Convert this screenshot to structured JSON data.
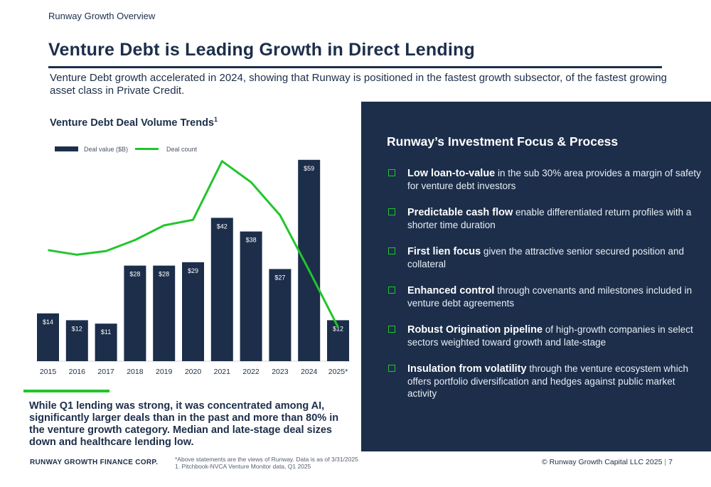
{
  "header": {
    "eyebrow": "Runway Growth Overview",
    "title": "Venture Debt is Leading Growth in Direct Lending",
    "subtitle": "Venture Debt growth accelerated in 2024, showing that Runway is positioned in the fastest growth subsector, of the fastest growing asset class in Private Credit."
  },
  "chart": {
    "title": "Venture Debt Deal Volume Trends",
    "title_sup": "1"
  },
  "chart_data": {
    "type": "bar",
    "categories": [
      "2015",
      "2016",
      "2017",
      "2018",
      "2019",
      "2020",
      "2021",
      "2022",
      "2023",
      "2024",
      "2025*"
    ],
    "series": [
      {
        "name": "Deal value ($B)",
        "type": "bar",
        "values": [
          14,
          12,
          11,
          28,
          28,
          29,
          42,
          38,
          27,
          59,
          12
        ],
        "labels": [
          "$14",
          "$12",
          "$11",
          "$28",
          "$28",
          "$29",
          "$42",
          "$38",
          "$27",
          "$59",
          "$12"
        ]
      },
      {
        "name": "Deal count",
        "type": "line",
        "values": [
          0.4,
          0.375,
          0.395,
          0.455,
          0.535,
          0.565,
          0.885,
          0.77,
          0.59,
          0.29,
          -0.02
        ]
      }
    ],
    "legend_position": "top-left",
    "colors": {
      "bar": "#1c2e4a",
      "line": "#22c52c",
      "bar_label": "#ffffff"
    }
  },
  "callout": "While Q1 lending was strong, it was concentrated among AI, significantly larger deals than in the past and more than 80% in the venture growth category. Median and late-stage deal sizes down and healthcare lending low.",
  "panel": {
    "title": "Runway’s Investment Focus & Process",
    "items": [
      {
        "lead": "Low loan-to-value",
        "rest": " in the sub 30% area provides a margin of safety for venture debt investors"
      },
      {
        "lead": "Predictable cash flow",
        "rest": " enable differentiated return profiles with a shorter time duration"
      },
      {
        "lead": "First lien focus",
        "rest": " given the attractive senior secured position and collateral"
      },
      {
        "lead": "Enhanced control",
        "rest": " through covenants and milestones included in venture debt agreements"
      },
      {
        "lead": "Robust Origination pipeline",
        "rest": " of high-growth companies in select sectors weighted toward growth and late-stage"
      },
      {
        "lead": "Insulation from volatility",
        "rest": " through the venture ecosystem which offers portfolio diversification and hedges against public market activity"
      }
    ]
  },
  "footer": {
    "company": "RUNWAY GROWTH FINANCE CORP.",
    "note1": "*Above statements are the views of Runway. Data is as of 3/31/2025",
    "note2": "1.   Pitchbook-NVCA Venture Monitor data, Q1 2025",
    "copyright": "© Runway Growth Capital LLC 2025",
    "separator": "|",
    "page": "7"
  },
  "colors": {
    "navy": "#1c2e4a",
    "green": "#22c52c"
  }
}
